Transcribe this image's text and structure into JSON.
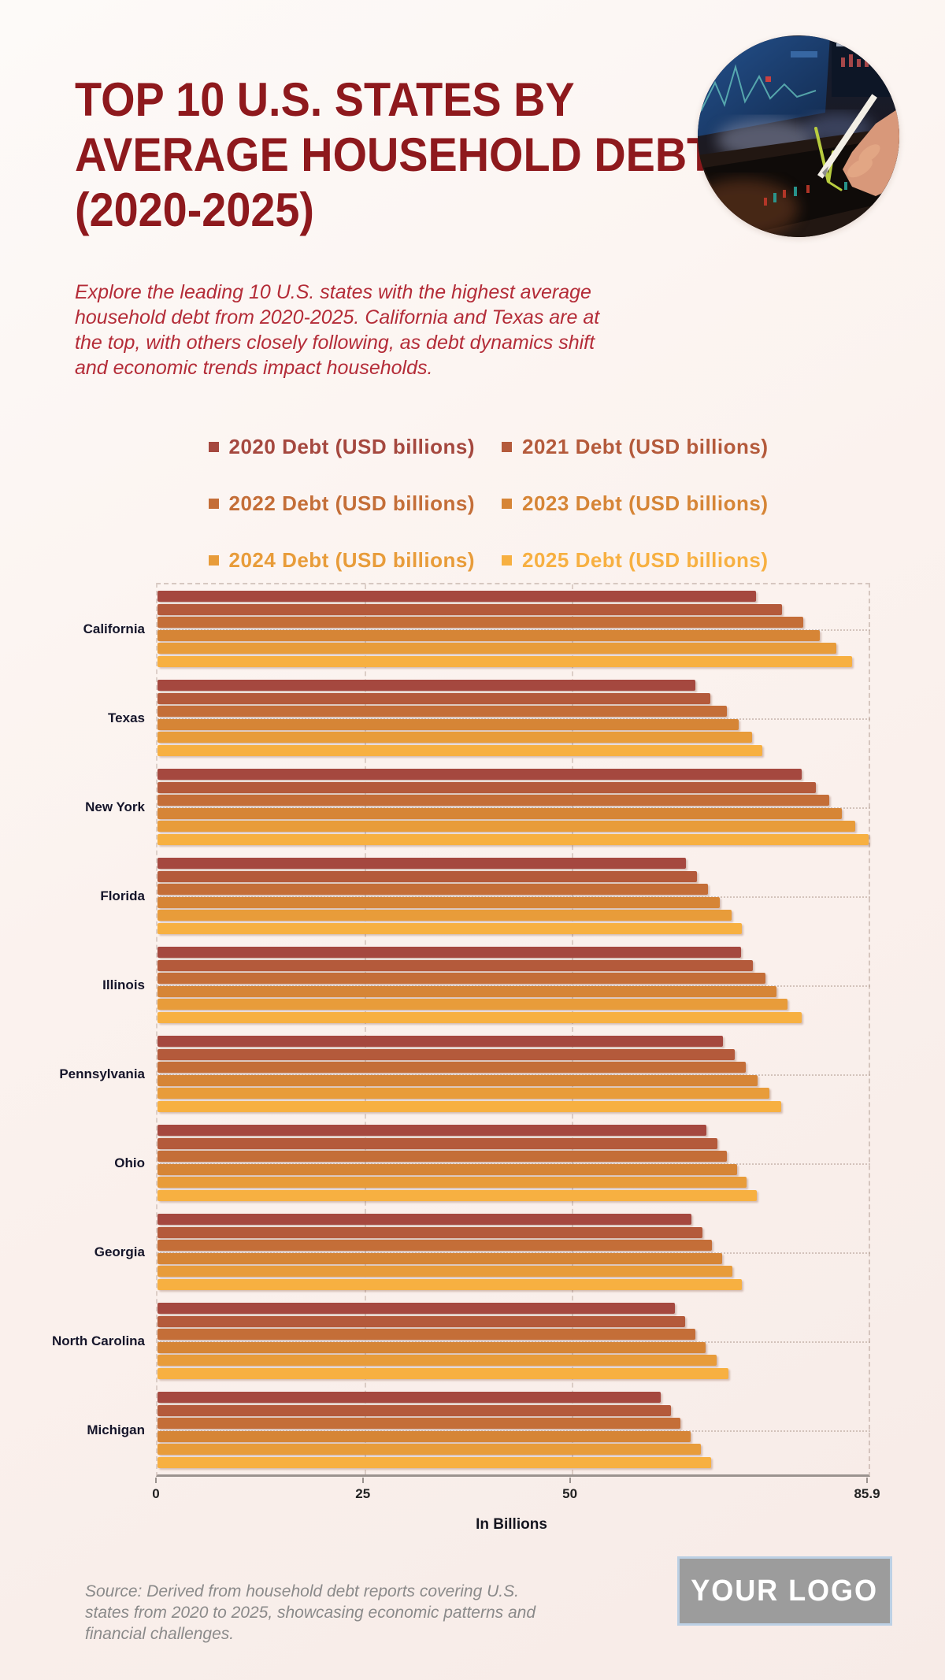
{
  "page": {
    "title": "TOP 10 U.S. STATES BY\nAVERAGE HOUSEHOLD DEBT\n(2020-2025)",
    "description": "Explore the leading 10 U.S. states with the highest average\nhousehold debt from 2020-2025. California and Texas are at\nthe top, with others closely following, as debt dynamics shift\nand economic trends impact households.",
    "title_color": "#8E191D",
    "description_color": "#B42C38",
    "hero_image": "hand-with-stylus-over-stock-charts-photo"
  },
  "chart_data": {
    "type": "bar",
    "orientation": "horizontal",
    "title": "",
    "xlabel": "In Billions",
    "ylabel": "",
    "xlim": [
      0,
      85.9
    ],
    "grid": "dashed",
    "legend_position": "top-center",
    "categories": [
      "California",
      "Texas",
      "New York",
      "Florida",
      "Illinois",
      "Pennsylvania",
      "Ohio",
      "Georgia",
      "North Carolina",
      "Michigan"
    ],
    "series": [
      {
        "name": "2020 Debt (USD billions)",
        "color": "#A5483F",
        "values": [
          72.3,
          65.0,
          77.8,
          63.8,
          70.5,
          68.3,
          66.3,
          64.5,
          62.5,
          60.8
        ]
      },
      {
        "name": "2021 Debt (USD billions)",
        "color": "#B45A3B",
        "values": [
          75.4,
          66.8,
          79.5,
          65.2,
          71.9,
          69.7,
          67.6,
          65.8,
          63.7,
          62.0
        ]
      },
      {
        "name": "2022 Debt (USD billions)",
        "color": "#C46E38",
        "values": [
          78.0,
          68.8,
          81.1,
          66.5,
          73.4,
          71.1,
          68.8,
          67.0,
          65.0,
          63.2
        ]
      },
      {
        "name": "2023 Debt (USD billions)",
        "color": "#D68536",
        "values": [
          80.0,
          70.2,
          82.7,
          67.9,
          74.8,
          72.5,
          70.0,
          68.2,
          66.2,
          64.4
        ]
      },
      {
        "name": "2024 Debt (USD billions)",
        "color": "#E89C3A",
        "values": [
          82.0,
          71.8,
          84.3,
          69.3,
          76.1,
          73.9,
          71.2,
          69.4,
          67.5,
          65.6
        ]
      },
      {
        "name": "2025 Debt (USD billions)",
        "color": "#F7B041",
        "values": [
          83.9,
          73.1,
          85.9,
          70.6,
          77.8,
          75.3,
          72.4,
          70.6,
          69.0,
          66.9
        ]
      }
    ],
    "xticks": [
      {
        "label": "0",
        "value": 0
      },
      {
        "label": "25",
        "value": 25
      },
      {
        "label": "50",
        "value": 50
      },
      {
        "label": "85.9",
        "value": 85.9
      }
    ]
  },
  "footer": {
    "source": "Source: Derived from household debt reports covering U.S.\nstates from 2020 to 2025, showcasing economic patterns and\nfinancial challenges.",
    "logo_text": "YOUR LOGO"
  }
}
